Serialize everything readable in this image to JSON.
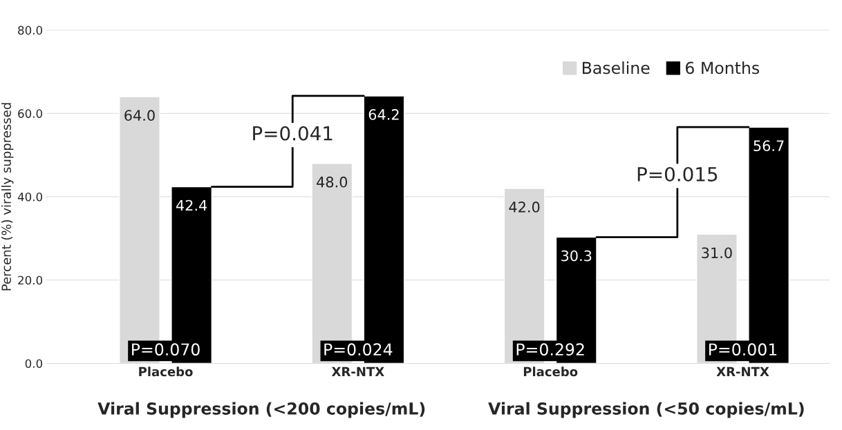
{
  "chart_data": {
    "type": "bar",
    "categories": [
      "Placebo",
      "XR-NTX",
      "Placebo",
      "XR-NTX"
    ],
    "series": [
      {
        "name": "Baseline",
        "color": "#d9d9d9",
        "values": [
          64.0,
          48.0,
          42.0,
          31.0
        ],
        "value_labels": [
          "64.0",
          "48.0",
          "42.0",
          "31.0"
        ]
      },
      {
        "name": "6 Months",
        "color": "#000000",
        "values": [
          42.4,
          64.2,
          30.3,
          56.7
        ],
        "value_labels": [
          "42.4",
          "64.2",
          "30.3",
          "56.7"
        ]
      }
    ],
    "ylabel": "Percent (%) virally suppressed",
    "ylim": [
      0,
      80
    ],
    "yticks": [
      {
        "value": 0,
        "label": "0.0"
      },
      {
        "value": 20,
        "label": "20.0"
      },
      {
        "value": 40,
        "label": "40.0"
      },
      {
        "value": 60,
        "label": "60.0"
      },
      {
        "value": 80,
        "label": "80.0"
      }
    ],
    "grid": "y",
    "legend": "top right",
    "annotations": [
      "P=0.070",
      "P=0.024",
      "P=0.292",
      "P=0.001",
      "P=0.041",
      "P=0.015",
      "Viral Suppression (<200 copies/mL)",
      "Viral Suppression (<50 copies/mL)"
    ]
  }
}
